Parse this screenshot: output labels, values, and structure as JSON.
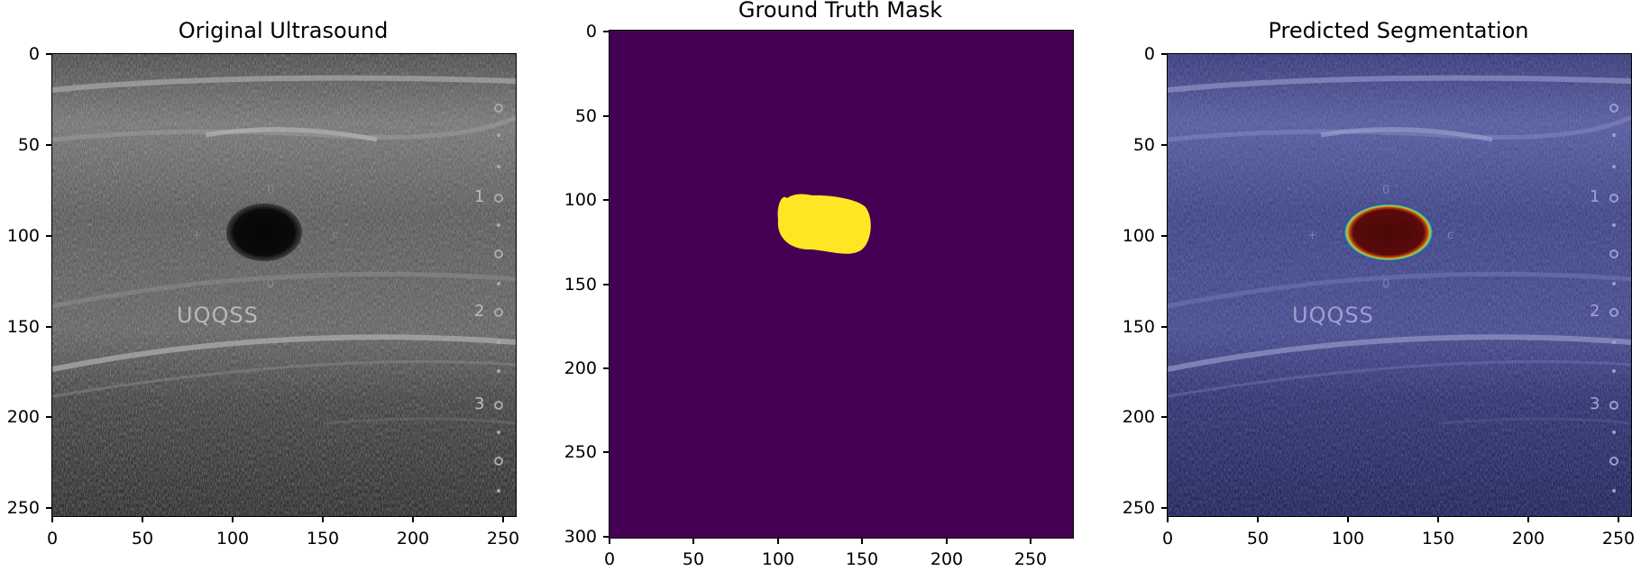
{
  "panels": [
    {
      "title": "Original Ultrasound",
      "yticks": [
        "0",
        "50",
        "100",
        "150",
        "200",
        "250"
      ],
      "xticks": [
        "0",
        "50",
        "100",
        "150",
        "200",
        "250"
      ],
      "overlay_text": "UQQSS",
      "scale_marks": [
        "1",
        "2",
        "3"
      ]
    },
    {
      "title": "Ground Truth Mask",
      "yticks": [
        "0",
        "50",
        "100",
        "150",
        "200",
        "250",
        "300"
      ],
      "xticks": [
        "0",
        "50",
        "100",
        "150",
        "200",
        "250"
      ],
      "background_color": "#440154",
      "mask_color": "#fde725"
    },
    {
      "title": "Predicted Segmentation",
      "yticks": [
        "0",
        "50",
        "100",
        "150",
        "200",
        "250"
      ],
      "xticks": [
        "0",
        "50",
        "100",
        "150",
        "200",
        "250"
      ],
      "overlay_text": "UQQSS",
      "scale_marks": [
        "1",
        "2",
        "3"
      ],
      "tint_color": "#1a1f5a",
      "lesion_color": "#5a0a0a"
    }
  ]
}
